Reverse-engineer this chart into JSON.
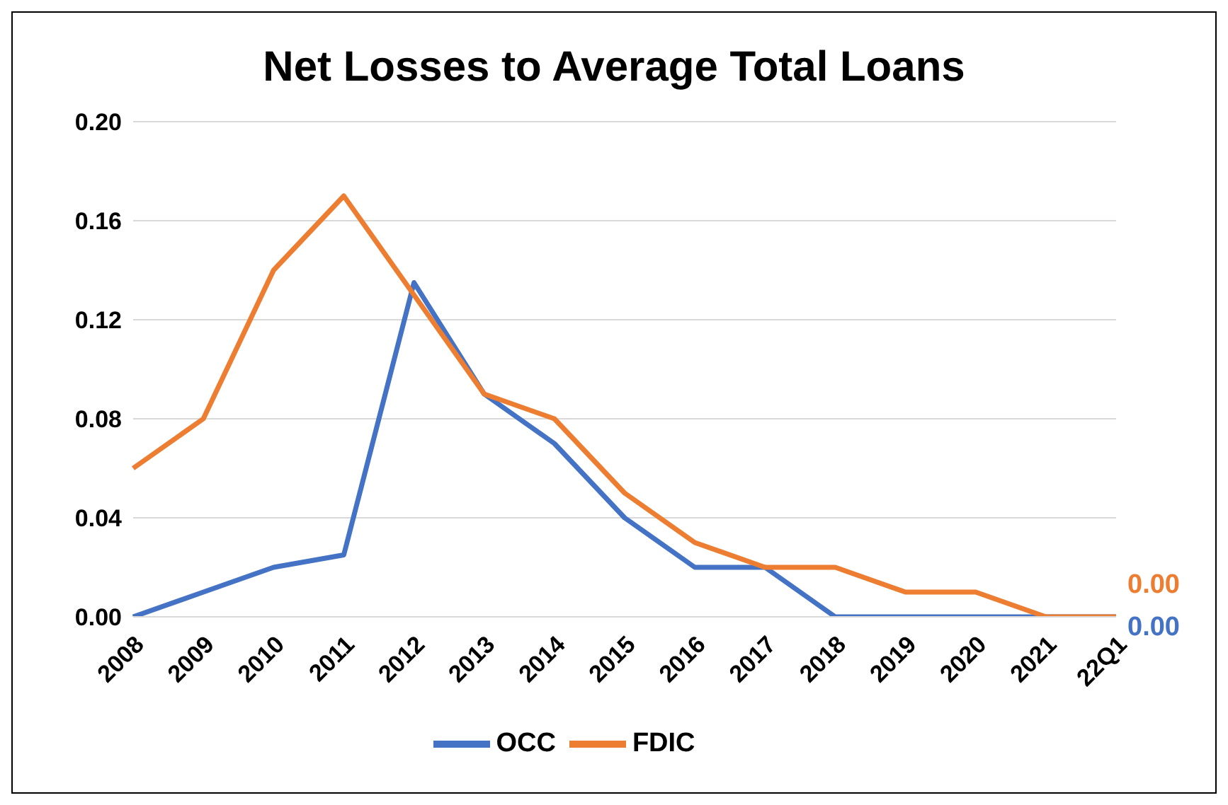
{
  "chart_data": {
    "type": "line",
    "title": "Net Losses to Average Total Loans",
    "categories": [
      "2008",
      "2009",
      "2010",
      "2011",
      "2012",
      "2013",
      "2014",
      "2015",
      "2016",
      "2017",
      "2018",
      "2019",
      "2020",
      "2021",
      "22Q1"
    ],
    "series": [
      {
        "name": "OCC",
        "color": "#4472c4",
        "values": [
          0,
          0.01,
          0.02,
          0.025,
          0.135,
          0.09,
          0.07,
          0.04,
          0.02,
          0.02,
          0,
          0,
          0,
          0,
          0
        ],
        "value_labels": [
          null,
          null,
          null,
          null,
          null,
          null,
          null,
          null,
          null,
          null,
          null,
          null,
          null,
          null,
          "0.00"
        ]
      },
      {
        "name": "FDIC",
        "color": "#ed7d31",
        "values": [
          0.06,
          0.08,
          0.14,
          0.17,
          0.13,
          0.09,
          0.08,
          0.05,
          0.03,
          0.02,
          0.02,
          0.01,
          0.01,
          0,
          0
        ],
        "value_labels": [
          null,
          null,
          null,
          null,
          null,
          null,
          null,
          null,
          null,
          null,
          null,
          null,
          null,
          null,
          "0.00"
        ]
      }
    ],
    "ylim": [
      0,
      0.2
    ],
    "yticks": [
      {
        "value": 0,
        "label": "0.00"
      },
      {
        "value": 0.04,
        "label": "0.04"
      },
      {
        "value": 0.08,
        "label": "0.08"
      },
      {
        "value": 0.12,
        "label": "0.12"
      },
      {
        "value": 0.16,
        "label": "0.16"
      },
      {
        "value": 0.2,
        "label": "0.20"
      }
    ],
    "grid": "y",
    "legend": "bottom",
    "marker": "none",
    "line_style": "solid"
  }
}
